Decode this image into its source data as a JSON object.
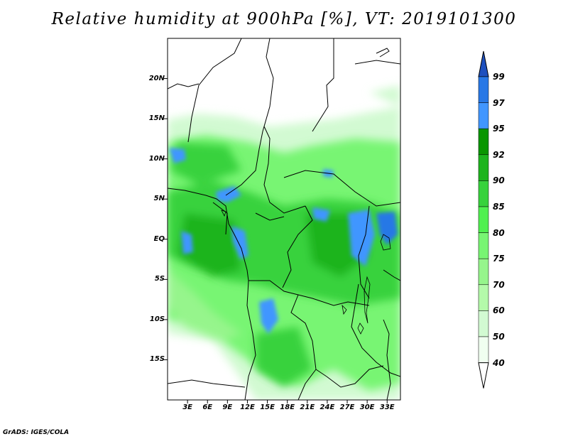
{
  "title": "Relative humidity at 900hPa [%], VT: 2019101300",
  "credit": "GrADS: IGES/COLA",
  "map": {
    "lon_range": [
      0,
      35
    ],
    "lat_range": [
      -20,
      25
    ],
    "y_tick_labels": [
      {
        "label": "20N",
        "lat": 20
      },
      {
        "label": "15N",
        "lat": 15
      },
      {
        "label": "10N",
        "lat": 10
      },
      {
        "label": "5N",
        "lat": 5
      },
      {
        "label": "EQ",
        "lat": 0
      },
      {
        "label": "5S",
        "lat": -5
      },
      {
        "label": "10S",
        "lat": -10
      },
      {
        "label": "15S",
        "lat": -15
      }
    ],
    "x_tick_labels": [
      {
        "label": "3E",
        "lon": 3
      },
      {
        "label": "6E",
        "lon": 6
      },
      {
        "label": "9E",
        "lon": 9
      },
      {
        "label": "12E",
        "lon": 12
      },
      {
        "label": "15E",
        "lon": 15
      },
      {
        "label": "18E",
        "lon": 18
      },
      {
        "label": "21E",
        "lon": 21
      },
      {
        "label": "24E",
        "lon": 24
      },
      {
        "label": "27E",
        "lon": 27
      },
      {
        "label": "30E",
        "lon": 30
      },
      {
        "label": "33E",
        "lon": 33
      }
    ]
  },
  "colorbar": {
    "labels": [
      "99",
      "97",
      "95",
      "92",
      "90",
      "85",
      "80",
      "75",
      "70",
      "60",
      "50",
      "40"
    ],
    "colors": [
      "#1e64d2",
      "#2878e6",
      "#4196ff",
      "#0a9600",
      "#1eb41e",
      "#37d23c",
      "#50f050",
      "#78f573",
      "#96f58c",
      "#b4faaa",
      "#d2fad2",
      "#f0fff0"
    ],
    "top_triangle_color": "#1e50be",
    "bottom_triangle_color": "#ffffff"
  }
}
